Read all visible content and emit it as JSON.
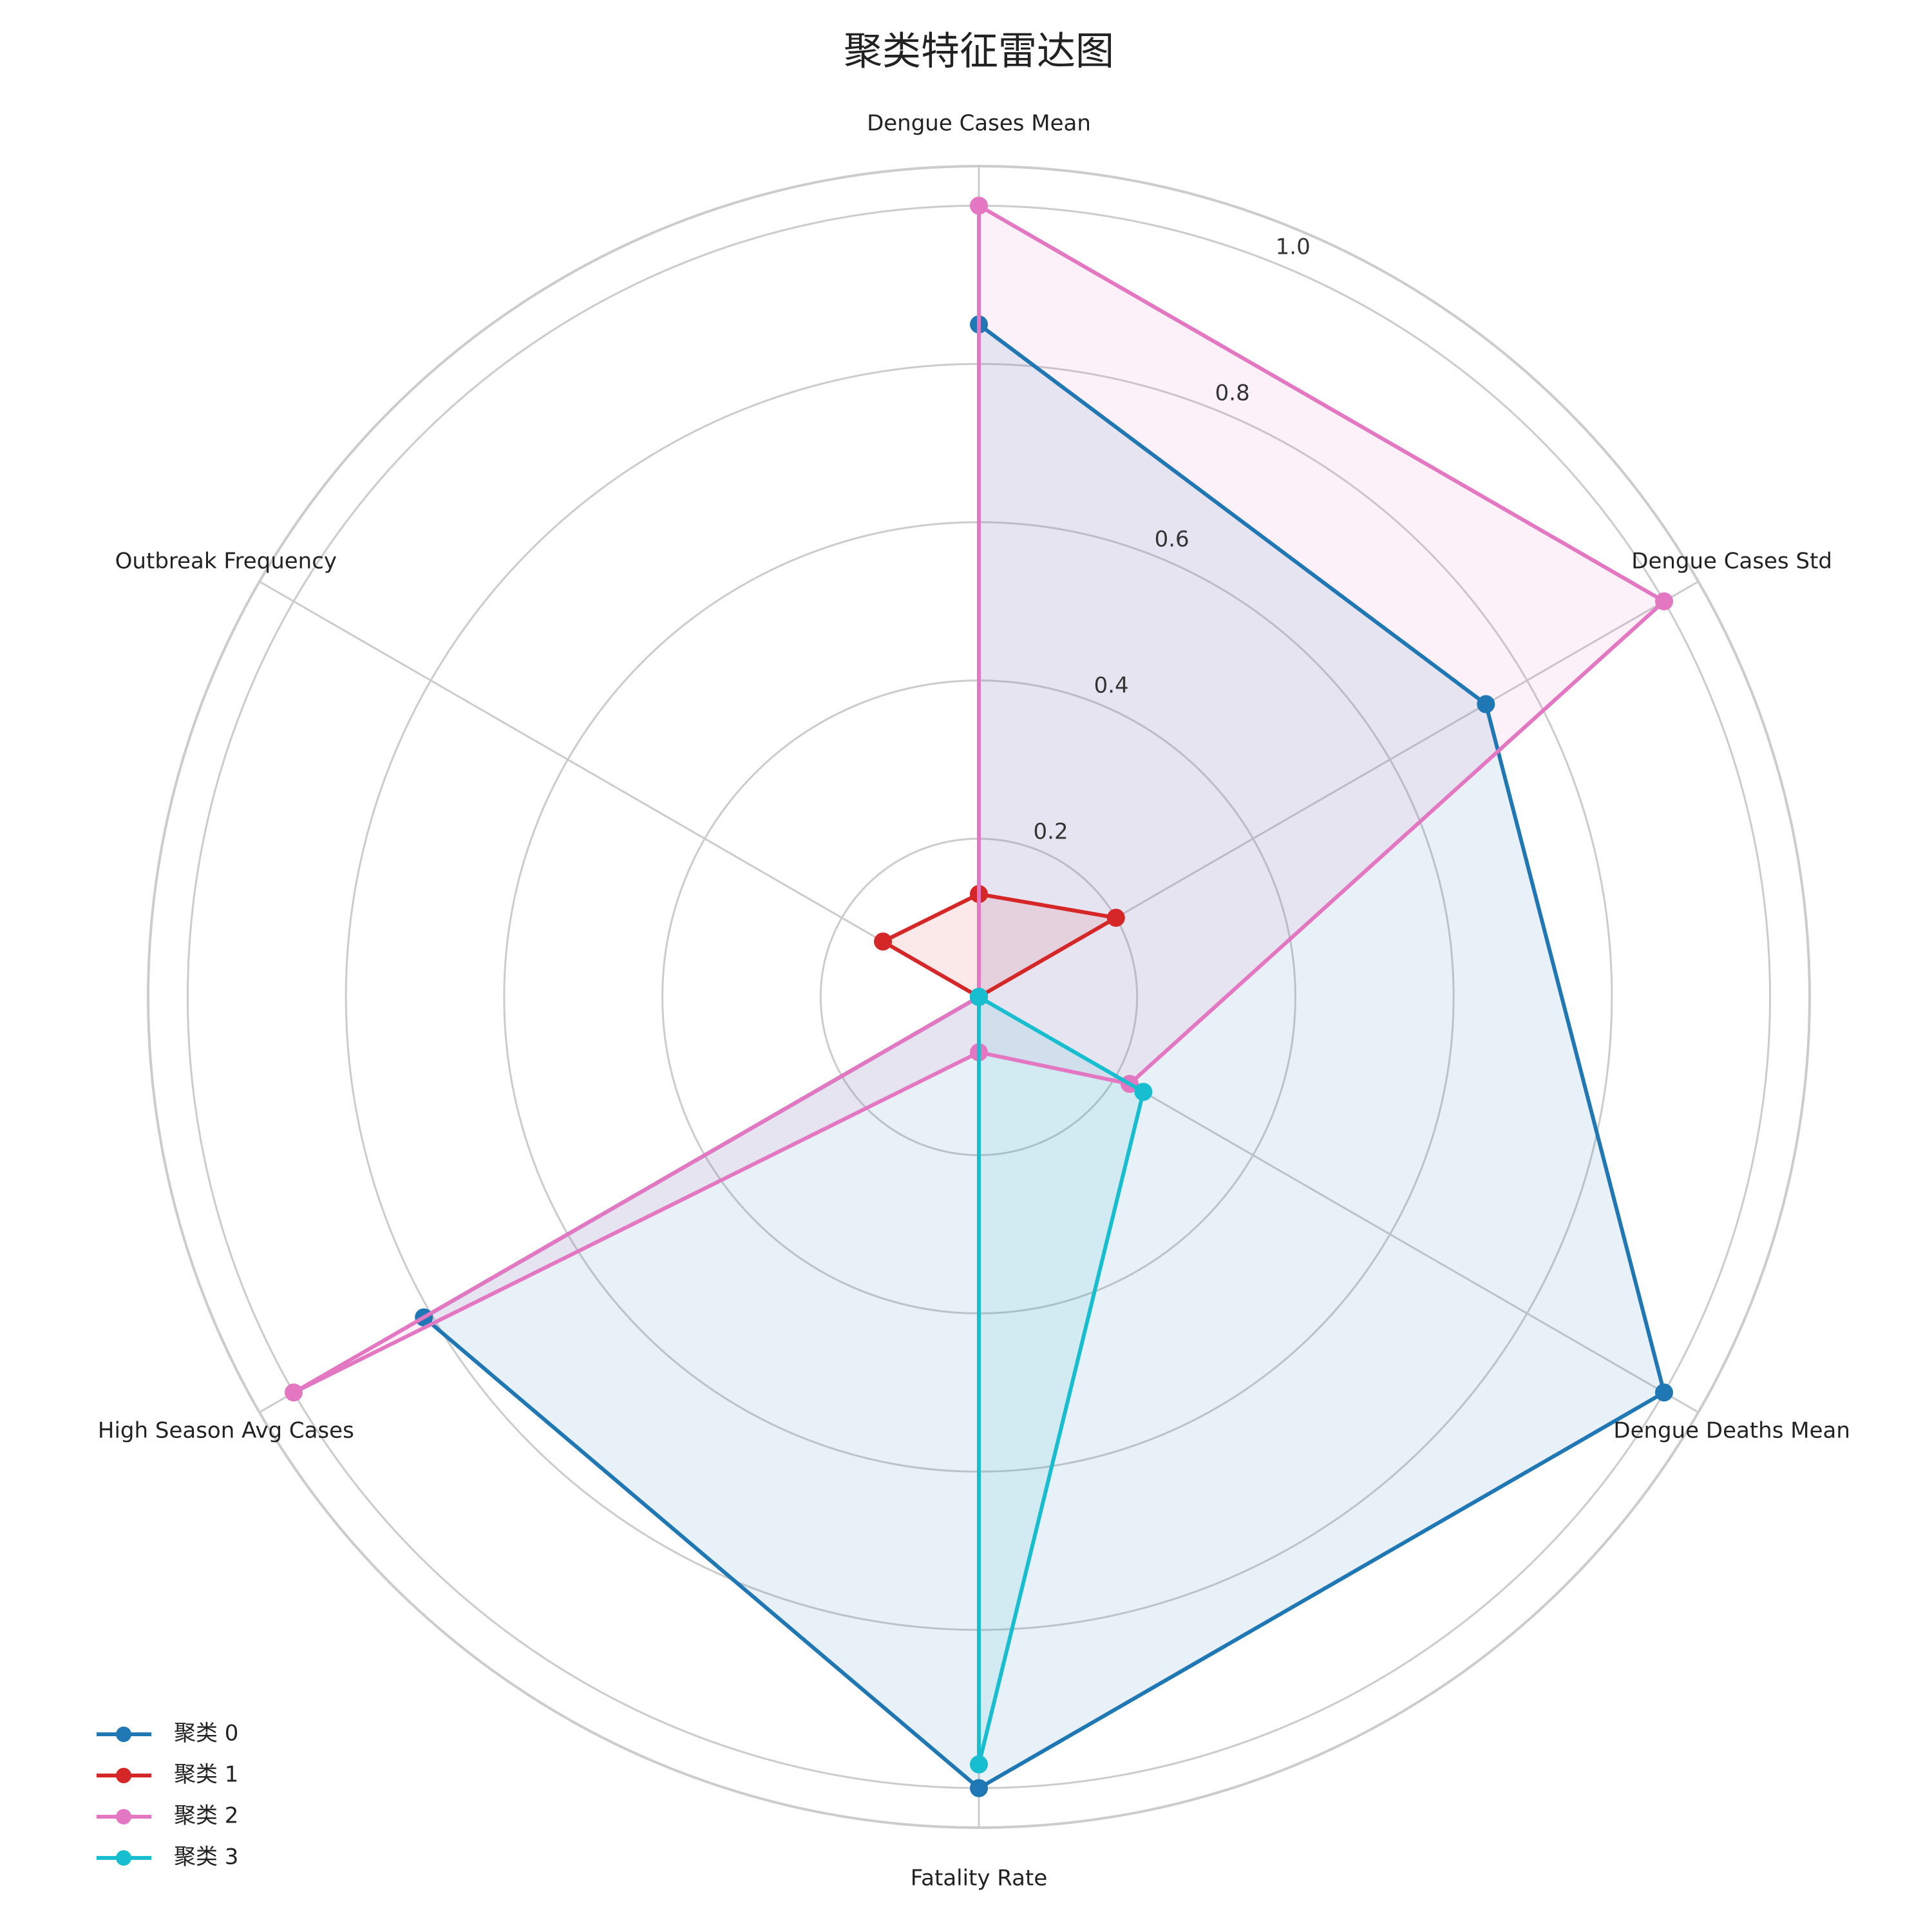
{
  "chart_data": {
    "type": "radar",
    "title": "聚类特征雷达图",
    "axes": [
      "Dengue Cases Mean",
      "Dengue Cases Std",
      "Dengue Deaths Mean",
      "Fatality Rate",
      "High Season Avg Cases",
      "Outbreak Frequency"
    ],
    "rlim": [
      0,
      1.05
    ],
    "rticks": [
      0.2,
      0.4,
      0.6,
      0.8,
      1.0
    ],
    "rtick_labels": [
      "0.2",
      "0.4",
      "0.6",
      "0.8",
      "1.0"
    ],
    "grid": true,
    "legend_position": "bottom-left",
    "series": [
      {
        "name": "聚类 0",
        "color": "#1f77b4",
        "values": [
          0.85,
          0.74,
          1.0,
          1.0,
          0.81,
          0.0
        ]
      },
      {
        "name": "聚类 1",
        "color": "#d62728",
        "values": [
          0.13,
          0.2,
          0.0,
          0.0,
          0.0,
          0.14
        ]
      },
      {
        "name": "聚类 2",
        "color": "#e377c2",
        "values": [
          1.0,
          1.0,
          0.22,
          0.07,
          1.0,
          0.0
        ]
      },
      {
        "name": "聚类 3",
        "color": "#17becf",
        "values": [
          0.0,
          0.0,
          0.24,
          0.97,
          0.0,
          0.0
        ]
      }
    ]
  }
}
